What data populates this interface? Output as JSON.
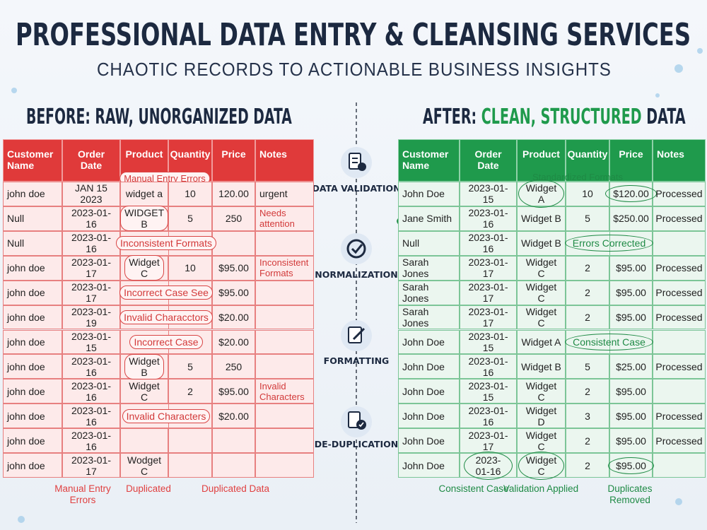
{
  "header": {
    "title": "PROFESSIONAL DATA ENTRY & CLEANSING SERVICES",
    "subtitle": "CHAOTIC RECORDS TO ACTIONABLE BUSINESS INSIGHTS"
  },
  "before": {
    "heading": "BEFORE: RAW, UNORGANIZED DATA",
    "columns": [
      "Customer Name",
      "Order Date",
      "Product",
      "Quantity",
      "Price",
      "Notes"
    ],
    "annotation": "Manual Entry Errors",
    "rows": [
      [
        "john doe",
        "JAN 15 2023",
        "widget a",
        "10",
        "120.00",
        "urgent"
      ],
      [
        "Null",
        "2023-01-16",
        "WIDGET B",
        "5",
        "250",
        "Needs attention"
      ],
      [
        "Null",
        "2023-01-16",
        "Inconsistent Formats",
        null,
        null,
        null
      ],
      [
        "john doe",
        "2023-01-17",
        "Widget C",
        "10",
        "$95.00",
        "Inconsistent Formats"
      ],
      [
        "john doe",
        "2023-01-17",
        "Incorrect Case See",
        null,
        "$95.00",
        null
      ],
      [
        "john doe",
        "2023-01-19",
        "Invalid Characctors",
        null,
        "$20.00",
        null
      ],
      [
        "john doe",
        "2023-01-15",
        "Incorrect Case",
        null,
        "$20.00",
        null
      ],
      [
        "john doe",
        "2023-01-16",
        "Widget B",
        "5",
        "250",
        null
      ],
      [
        "john doe",
        "2023-01-16",
        "Widget C",
        "2",
        "$95.00",
        "Invalid Characters"
      ],
      [
        "john doe",
        "2023-01-16",
        "Invalid Characters",
        null,
        "$20.00",
        null
      ],
      [
        "john doe",
        "2023-01-16",
        null,
        null,
        null,
        null
      ],
      [
        "john doe",
        "2023-01-17",
        "Wodget C",
        null,
        null,
        null
      ]
    ],
    "footer": [
      "Manual Entry Errors",
      "Duplicated",
      "Duplicated Data"
    ]
  },
  "steps": [
    "DATA VALIDATION",
    "NORMALIZATION",
    "FORMATTING",
    "DE-DUPLICATION"
  ],
  "after": {
    "heading": {
      "prefix": "AFTER:",
      "highlight": "CLEAN, STRUCTURED",
      "suffix": "DATA"
    },
    "columns": [
      "Customer Name",
      "Order Date",
      "Product",
      "Quantity",
      "Price",
      "Notes"
    ],
    "annotation": "Standardized Formats",
    "rows": [
      [
        "John Doe",
        "2023-01-15",
        "Widget A",
        "10",
        "$120.00",
        "Processed"
      ],
      [
        "Jane Smith",
        "2023-01-16",
        "Widget B",
        "5",
        "$250.00",
        "Processed"
      ],
      [
        "Null",
        "2023-01-16",
        "Widget B",
        "Errors Corrected",
        null,
        null
      ],
      [
        "Sarah Jones",
        "2023-01-17",
        "Widget C",
        "2",
        "$95.00",
        "Processed"
      ],
      [
        "Sarah Jones",
        "2023-01-17",
        "Widget C",
        "2",
        "$95.00",
        "Processed"
      ],
      [
        "Sarah Jones",
        "2023-01-17",
        "Widget C",
        "2",
        "$95.00",
        "Processed"
      ],
      [
        "John Doe",
        "2023-01-15",
        "Widget A",
        "Consistent Case",
        null,
        null
      ],
      [
        "John Doe",
        "2023-01-16",
        "Widget B",
        "5",
        "$25.00",
        "Processed"
      ],
      [
        "John Doe",
        "2023-01-15",
        "Widget C",
        "2",
        "$95.00",
        null
      ],
      [
        "John Doe",
        "2023-01-16",
        "Widget D",
        "3",
        "$95.00",
        "Processed"
      ],
      [
        "John Doe",
        "2023-01-17",
        "Widget C",
        "2",
        "$95.00",
        "Processed"
      ],
      [
        "John Doe",
        "2023-01-16",
        "Widget C",
        "2",
        "$95.00",
        null
      ]
    ],
    "footer": [
      "Consistent Case",
      "Validation Applied",
      "Duplicates Removed"
    ]
  }
}
